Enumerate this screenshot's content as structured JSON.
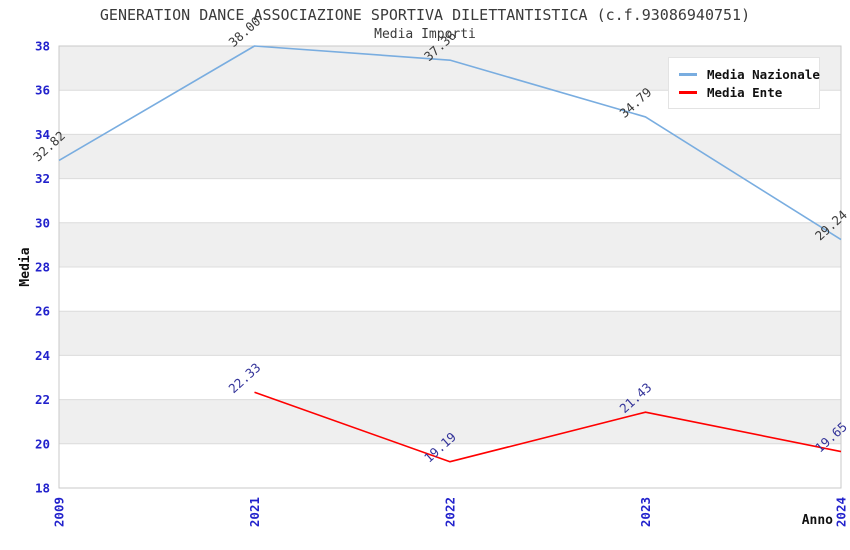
{
  "title": "GENERATION DANCE ASSOCIAZIONE SPORTIVA DILETTANTISTICA (c.f.93086940751)",
  "subtitle": "Media Importi",
  "chart_data": {
    "type": "line",
    "categories": [
      "2009",
      "2021",
      "2022",
      "2023",
      "2024"
    ],
    "series": [
      {
        "name": "Media Nazionale",
        "color": "#79ADE0",
        "label_color": "#3a3a3a",
        "values": [
          32.82,
          38.0,
          37.36,
          34.79,
          29.24
        ],
        "labels": [
          "32.82",
          "38.00",
          "37.36",
          "34.79",
          "29.24"
        ]
      },
      {
        "name": "Media Ente",
        "color": "#FF0000",
        "label_color": "#333399",
        "values": [
          null,
          22.33,
          19.19,
          21.43,
          19.65
        ],
        "labels": [
          null,
          "22.33",
          "19.19",
          "21.43",
          "19.65"
        ]
      }
    ],
    "xlabel": "Anno",
    "ylabel": "Media",
    "ylim": [
      18,
      38
    ],
    "ytick_step": 2,
    "yticks": [
      "18",
      "20",
      "22",
      "24",
      "26",
      "28",
      "30",
      "32",
      "34",
      "36",
      "38"
    ],
    "grid": true,
    "legend_position": "top-right",
    "band_colors": [
      "#EFEFEF",
      "#FFFFFF"
    ],
    "gridline_color": "#DCDCDC",
    "border_color": "#C9C9C9",
    "tick_label_color": "#2222CC",
    "axis_label_color": "#111111"
  }
}
